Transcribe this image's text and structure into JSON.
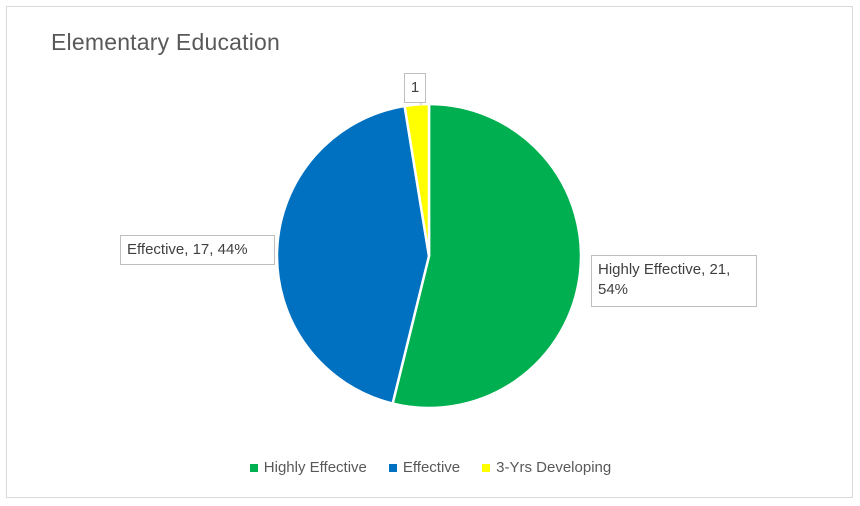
{
  "chart_data": {
    "type": "pie",
    "title": "Elementary Education",
    "categories": [
      "Highly Effective",
      "Effective",
      "3-Yrs Developing"
    ],
    "values": [
      21,
      17,
      1
    ],
    "colors": [
      "#00B050",
      "#0070C0",
      "#FFFF00"
    ],
    "data_labels": {
      "highly_effective_line1": "Highly Effective, 21,",
      "highly_effective_line2": "54%",
      "effective": "Effective, 17, 44%",
      "developing": "1"
    },
    "legend": {
      "position": "bottom",
      "entries": [
        "Highly Effective",
        "Effective",
        "3-Yrs Developing"
      ]
    }
  }
}
